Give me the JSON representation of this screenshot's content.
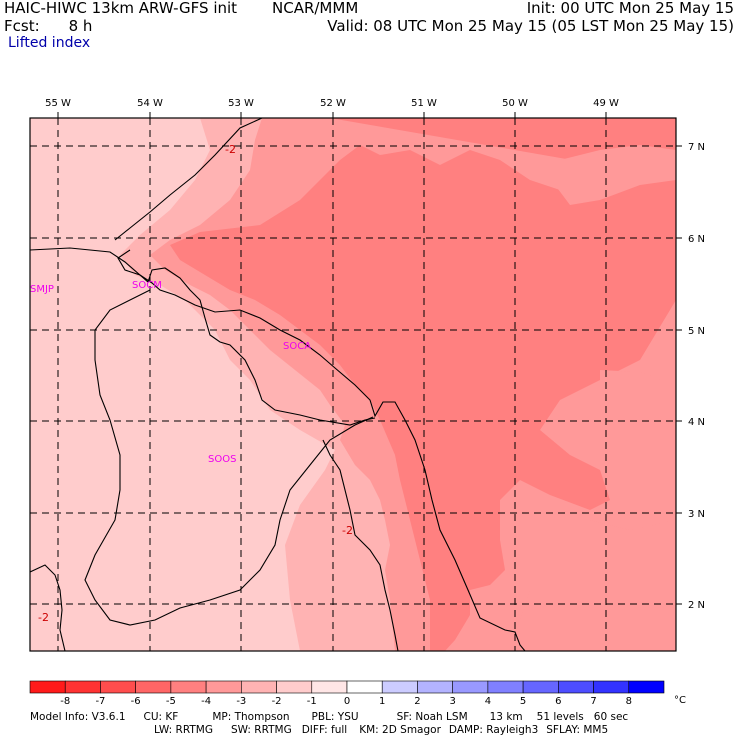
{
  "header": {
    "model_title": "HAIC-HIWC 13km ARW-GFS init",
    "org": "NCAR/MMM",
    "init_time": "Init: 00 UTC Mon 25 May 15",
    "fcst_label": "Fcst:",
    "fcst_value": "8 h",
    "valid_time": "Valid: 08 UTC Mon 25 May 15 (05 LST Mon 25 May 15)",
    "field_name": "Lifted index"
  },
  "map": {
    "lon_labels": [
      "55 W",
      "54 W",
      "53 W",
      "52 W",
      "51 W",
      "50 W",
      "49 W"
    ],
    "lat_labels": [
      "7 N",
      "6 N",
      "5 N",
      "4 N",
      "3 N",
      "2 N"
    ],
    "stations": [
      "SMJP",
      "SOCM",
      "SOCA",
      "SOOS"
    ],
    "contour_labels": [
      "-2",
      "-2",
      "-2"
    ]
  },
  "colorbar": {
    "ticks": [
      "-8",
      "-7",
      "-6",
      "-5",
      "-4",
      "-3",
      "-2",
      "-1",
      "0",
      "1",
      "2",
      "3",
      "4",
      "5",
      "6",
      "7",
      "8"
    ],
    "unit": "°C",
    "colors": [
      "#ff1a1a",
      "#ff3333",
      "#ff4d4d",
      "#ff6666",
      "#ff8080",
      "#ff9999",
      "#ffb3b3",
      "#ffcccc",
      "#ffe6e6",
      "#ffffff",
      "#ccccff",
      "#b3b3ff",
      "#9999ff",
      "#8080ff",
      "#6666ff",
      "#4d4dff",
      "#3333ff",
      "#0000ff"
    ]
  },
  "footer": {
    "model_info": "Model Info: V3.6.1",
    "cu": "CU: KF",
    "mp": "MP: Thompson",
    "pbl": "PBL: YSU",
    "sf": "SF: Noah LSM",
    "res": "13 km",
    "levels": "51 levels",
    "dt": "60 sec",
    "lw": "LW: RRTMG",
    "sw": "SW: RRTMG",
    "diff": "DIFF: full",
    "km": "KM: 2D Smagor",
    "damp": "DAMP: Rayleigh3",
    "sflay": "SFLAY: MM5"
  }
}
